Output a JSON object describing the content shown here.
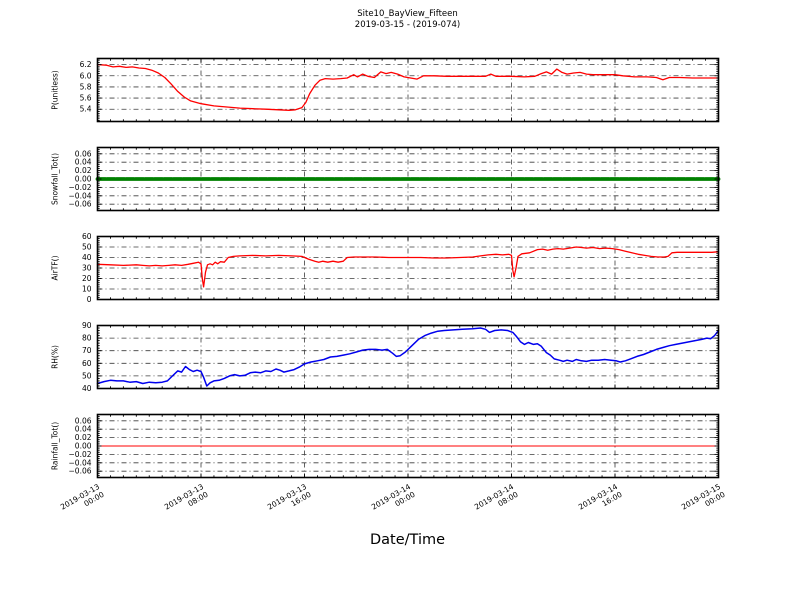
{
  "figure": {
    "title_line1": "Site10_BayView_Fifteen",
    "title_line2": "2019-03-15 - (2019-074)",
    "background": "#ffffff",
    "grid_color": "#3c3c3c",
    "spine_color": "#000000"
  },
  "x_axis": {
    "label": "Date/Time",
    "range_hours": [
      0,
      48
    ],
    "tick_hours": [
      0,
      8,
      16,
      24,
      32,
      40,
      48
    ],
    "minor_step_hours": 1,
    "grid_style": "dash-dot",
    "tick_labels": [
      {
        "date": "2019-03-13",
        "time": "00:00"
      },
      {
        "date": "2019-03-13",
        "time": "08:00"
      },
      {
        "date": "2019-03-13",
        "time": "16:00"
      },
      {
        "date": "2019-03-14",
        "time": "00:00"
      },
      {
        "date": "2019-03-14",
        "time": "08:00"
      },
      {
        "date": "2019-03-14",
        "time": "16:00"
      },
      {
        "date": "2019-03-15",
        "time": "00:00"
      }
    ]
  },
  "chart_data": [
    {
      "name": "p-unitless",
      "type": "line",
      "ylabel": "P(unitless)",
      "color": "#ff0000",
      "line_width": 1.3,
      "ylim": [
        5.18,
        6.31
      ],
      "minor_step": 0.04,
      "yticks": [
        {
          "v": 5.4,
          "label": "5.4"
        },
        {
          "v": 5.6,
          "label": "5.6"
        },
        {
          "v": 5.8,
          "label": "5.8"
        },
        {
          "v": 6.0,
          "label": "6.0"
        },
        {
          "v": 6.2,
          "label": "6.2"
        }
      ],
      "points": [
        [
          0,
          6.2
        ],
        [
          0.7,
          6.19
        ],
        [
          1.2,
          6.16
        ],
        [
          1.7,
          6.17
        ],
        [
          2.2,
          6.15
        ],
        [
          2.7,
          6.16
        ],
        [
          3.2,
          6.14
        ],
        [
          3.7,
          6.13
        ],
        [
          4.2,
          6.1
        ],
        [
          4.7,
          6.05
        ],
        [
          5.2,
          5.97
        ],
        [
          5.7,
          5.85
        ],
        [
          6.2,
          5.72
        ],
        [
          6.7,
          5.62
        ],
        [
          7.2,
          5.55
        ],
        [
          8,
          5.5
        ],
        [
          9,
          5.46
        ],
        [
          10,
          5.44
        ],
        [
          11,
          5.42
        ],
        [
          12,
          5.41
        ],
        [
          13,
          5.4
        ],
        [
          14,
          5.39
        ],
        [
          14.8,
          5.38
        ],
        [
          15.3,
          5.39
        ],
        [
          15.8,
          5.43
        ],
        [
          16.1,
          5.52
        ],
        [
          16.4,
          5.68
        ],
        [
          16.8,
          5.83
        ],
        [
          17.2,
          5.92
        ],
        [
          17.6,
          5.95
        ],
        [
          18.2,
          5.94
        ],
        [
          18.8,
          5.95
        ],
        [
          19.3,
          5.96
        ],
        [
          19.8,
          6.02
        ],
        [
          20.1,
          5.98
        ],
        [
          20.5,
          6.03
        ],
        [
          20.9,
          5.99
        ],
        [
          21.4,
          5.97
        ],
        [
          21.9,
          6.07
        ],
        [
          22.3,
          6.04
        ],
        [
          22.7,
          6.06
        ],
        [
          23.2,
          6.03
        ],
        [
          23.7,
          5.98
        ],
        [
          24.2,
          5.96
        ],
        [
          24.7,
          5.94
        ],
        [
          25.2,
          6
        ],
        [
          26,
          6
        ],
        [
          27,
          5.99
        ],
        [
          28,
          5.99
        ],
        [
          29,
          5.99
        ],
        [
          30,
          5.99
        ],
        [
          30.4,
          6.03
        ],
        [
          30.8,
          5.99
        ],
        [
          32,
          5.99
        ],
        [
          33,
          5.98
        ],
        [
          33.8,
          5.99
        ],
        [
          34.3,
          6.04
        ],
        [
          34.7,
          6.07
        ],
        [
          35.1,
          6.03
        ],
        [
          35.5,
          6.12
        ],
        [
          35.9,
          6.06
        ],
        [
          36.3,
          6.03
        ],
        [
          36.8,
          6.05
        ],
        [
          37.3,
          6.06
        ],
        [
          37.8,
          6.03
        ],
        [
          38.3,
          6.02
        ],
        [
          39,
          6.02
        ],
        [
          40,
          6.02
        ],
        [
          40.6,
          6
        ],
        [
          41.5,
          5.98
        ],
        [
          42.5,
          5.98
        ],
        [
          43.2,
          5.97
        ],
        [
          43.7,
          5.93
        ],
        [
          44.2,
          5.97
        ],
        [
          45,
          5.97
        ],
        [
          46,
          5.96
        ],
        [
          47,
          5.96
        ],
        [
          48,
          5.96
        ]
      ]
    },
    {
      "name": "snowfall-tot",
      "type": "line",
      "ylabel": "Snowfall_Tot()",
      "color": "#008000",
      "line_width": 3.8,
      "dash": "8 1.5",
      "ylim": [
        -0.075,
        0.075
      ],
      "minor_step": 0.005,
      "yticks": [
        {
          "v": 0.06,
          "label": "0.06"
        },
        {
          "v": 0.04,
          "label": "0.04"
        },
        {
          "v": 0.02,
          "label": "0.02"
        },
        {
          "v": 0.0,
          "label": "0.00"
        },
        {
          "v": -0.02,
          "label": "−0.02"
        },
        {
          "v": -0.04,
          "label": "−0.04"
        },
        {
          "v": -0.06,
          "label": "−0.06"
        }
      ],
      "points": [
        [
          0,
          0
        ],
        [
          48,
          0
        ]
      ]
    },
    {
      "name": "airtf",
      "type": "line",
      "ylabel": "AirTF()",
      "color": "#ff0000",
      "line_width": 1.3,
      "ylim": [
        0,
        60
      ],
      "minor_step": 2,
      "yticks": [
        {
          "v": 0,
          "label": "0"
        },
        {
          "v": 10,
          "label": "10"
        },
        {
          "v": 20,
          "label": "20"
        },
        {
          "v": 30,
          "label": "30"
        },
        {
          "v": 40,
          "label": "40"
        },
        {
          "v": 50,
          "label": "50"
        },
        {
          "v": 60,
          "label": "60"
        }
      ],
      "points": [
        [
          0,
          33.5
        ],
        [
          1,
          33
        ],
        [
          2,
          32.5
        ],
        [
          3,
          33
        ],
        [
          3.5,
          32.5
        ],
        [
          4,
          32
        ],
        [
          4.5,
          32.5
        ],
        [
          5,
          32
        ],
        [
          5.5,
          32.5
        ],
        [
          6,
          33
        ],
        [
          6.5,
          32.5
        ],
        [
          7,
          33.5
        ],
        [
          7.4,
          34.5
        ],
        [
          7.8,
          35.5
        ],
        [
          8,
          34
        ],
        [
          8.1,
          20
        ],
        [
          8.2,
          12
        ],
        [
          8.35,
          26
        ],
        [
          8.5,
          33
        ],
        [
          8.7,
          34
        ],
        [
          8.9,
          33
        ],
        [
          9.1,
          35.5
        ],
        [
          9.3,
          34
        ],
        [
          9.5,
          36
        ],
        [
          9.8,
          35.5
        ],
        [
          10.1,
          40
        ],
        [
          10.5,
          41
        ],
        [
          11,
          41.5
        ],
        [
          12,
          42
        ],
        [
          13,
          41.5
        ],
        [
          14,
          42
        ],
        [
          15,
          41.5
        ],
        [
          15.8,
          41
        ],
        [
          16.3,
          38.5
        ],
        [
          16.8,
          36.5
        ],
        [
          17.1,
          35.5
        ],
        [
          17.4,
          36.5
        ],
        [
          17.8,
          35.5
        ],
        [
          18.2,
          36.5
        ],
        [
          18.6,
          35.5
        ],
        [
          19,
          36.5
        ],
        [
          19.3,
          40
        ],
        [
          19.8,
          40.5
        ],
        [
          20.5,
          40.5
        ],
        [
          21.5,
          40.5
        ],
        [
          22.5,
          40
        ],
        [
          24,
          40
        ],
        [
          25,
          40
        ],
        [
          26,
          39.5
        ],
        [
          27,
          39.5
        ],
        [
          28,
          40
        ],
        [
          29,
          40.5
        ],
        [
          29.6,
          41.5
        ],
        [
          30.2,
          42.5
        ],
        [
          30.8,
          43
        ],
        [
          31.3,
          42.5
        ],
        [
          31.8,
          43
        ],
        [
          32,
          42
        ],
        [
          32.1,
          28
        ],
        [
          32.2,
          21.5
        ],
        [
          32.35,
          30
        ],
        [
          32.5,
          41
        ],
        [
          32.8,
          43.5
        ],
        [
          33.4,
          44.5
        ],
        [
          34,
          47.5
        ],
        [
          34.4,
          48
        ],
        [
          34.8,
          47
        ],
        [
          35.2,
          48
        ],
        [
          35.6,
          48.5
        ],
        [
          36,
          48
        ],
        [
          36.5,
          49
        ],
        [
          37,
          50
        ],
        [
          37.4,
          49.5
        ],
        [
          37.8,
          49
        ],
        [
          38.3,
          49.5
        ],
        [
          38.8,
          48.5
        ],
        [
          39.3,
          49
        ],
        [
          39.8,
          48.5
        ],
        [
          40.3,
          47.5
        ],
        [
          40.8,
          46
        ],
        [
          41.3,
          44.5
        ],
        [
          41.8,
          43
        ],
        [
          42.3,
          42
        ],
        [
          42.8,
          41
        ],
        [
          43.3,
          40.5
        ],
        [
          43.8,
          40.5
        ],
        [
          44.1,
          41
        ],
        [
          44.4,
          44.5
        ],
        [
          44.8,
          45
        ],
        [
          45.5,
          45
        ],
        [
          46.5,
          45
        ],
        [
          47.5,
          45
        ],
        [
          48,
          45.5
        ]
      ]
    },
    {
      "name": "rh",
      "type": "line",
      "ylabel": "RH(%)",
      "color": "#0000ee",
      "line_width": 1.5,
      "ylim": [
        40,
        90
      ],
      "minor_step": 2,
      "yticks": [
        {
          "v": 40,
          "label": "40"
        },
        {
          "v": 50,
          "label": "50"
        },
        {
          "v": 60,
          "label": "60"
        },
        {
          "v": 70,
          "label": "70"
        },
        {
          "v": 80,
          "label": "80"
        },
        {
          "v": 90,
          "label": "90"
        }
      ],
      "points": [
        [
          0,
          44
        ],
        [
          0.5,
          45.5
        ],
        [
          1,
          46.5
        ],
        [
          1.5,
          46
        ],
        [
          2,
          46
        ],
        [
          2.5,
          45
        ],
        [
          3,
          45.5
        ],
        [
          3.5,
          44
        ],
        [
          4,
          45
        ],
        [
          4.5,
          44.5
        ],
        [
          5,
          45
        ],
        [
          5.4,
          46
        ],
        [
          5.8,
          50
        ],
        [
          6.2,
          54
        ],
        [
          6.5,
          53
        ],
        [
          6.8,
          57.5
        ],
        [
          7.1,
          55
        ],
        [
          7.4,
          53.5
        ],
        [
          7.7,
          54.5
        ],
        [
          8,
          53.5
        ],
        [
          8.2,
          49
        ],
        [
          8.45,
          42
        ],
        [
          8.7,
          44.5
        ],
        [
          9,
          46
        ],
        [
          9.4,
          46.5
        ],
        [
          9.8,
          48
        ],
        [
          10.2,
          50
        ],
        [
          10.6,
          51
        ],
        [
          11,
          50
        ],
        [
          11.4,
          50.5
        ],
        [
          11.8,
          52.5
        ],
        [
          12.2,
          53
        ],
        [
          12.6,
          52.5
        ],
        [
          13,
          54
        ],
        [
          13.4,
          53.5
        ],
        [
          13.8,
          55.5
        ],
        [
          14.1,
          54.5
        ],
        [
          14.4,
          53
        ],
        [
          14.8,
          54
        ],
        [
          15.2,
          55
        ],
        [
          15.6,
          57
        ],
        [
          16,
          59.5
        ],
        [
          16.5,
          61
        ],
        [
          17,
          62
        ],
        [
          17.5,
          63
        ],
        [
          18,
          65
        ],
        [
          18.5,
          65.5
        ],
        [
          19,
          66.5
        ],
        [
          19.5,
          67.5
        ],
        [
          20,
          69
        ],
        [
          20.5,
          70.5
        ],
        [
          21,
          71
        ],
        [
          21.5,
          71
        ],
        [
          22,
          70.5
        ],
        [
          22.4,
          71
        ],
        [
          22.8,
          68
        ],
        [
          23.1,
          65.5
        ],
        [
          23.4,
          66
        ],
        [
          23.8,
          69
        ],
        [
          24.3,
          74
        ],
        [
          24.8,
          79
        ],
        [
          25.3,
          82
        ],
        [
          25.8,
          84
        ],
        [
          26.3,
          85.5
        ],
        [
          26.8,
          86
        ],
        [
          27.5,
          86.5
        ],
        [
          28.2,
          87
        ],
        [
          29,
          87.5
        ],
        [
          29.6,
          88
        ],
        [
          30,
          87
        ],
        [
          30.3,
          84.5
        ],
        [
          30.7,
          86
        ],
        [
          31.2,
          86.5
        ],
        [
          31.7,
          86
        ],
        [
          32.1,
          84.5
        ],
        [
          32.4,
          81
        ],
        [
          32.7,
          77
        ],
        [
          33,
          75
        ],
        [
          33.3,
          76.5
        ],
        [
          33.7,
          75
        ],
        [
          34,
          75.5
        ],
        [
          34.3,
          73.5
        ],
        [
          34.7,
          68.5
        ],
        [
          35,
          66.5
        ],
        [
          35.3,
          63.5
        ],
        [
          35.7,
          62.5
        ],
        [
          36,
          61.5
        ],
        [
          36.3,
          62.5
        ],
        [
          36.7,
          61.5
        ],
        [
          37,
          63
        ],
        [
          37.4,
          62
        ],
        [
          37.8,
          61.5
        ],
        [
          38.2,
          62.5
        ],
        [
          38.7,
          62.5
        ],
        [
          39.2,
          63
        ],
        [
          39.7,
          62.5
        ],
        [
          40.1,
          62
        ],
        [
          40.4,
          61
        ],
        [
          40.8,
          62
        ],
        [
          41.2,
          63.5
        ],
        [
          41.7,
          65.5
        ],
        [
          42.2,
          67
        ],
        [
          42.7,
          69
        ],
        [
          43.2,
          71
        ],
        [
          43.7,
          72.5
        ],
        [
          44.2,
          74
        ],
        [
          44.7,
          75
        ],
        [
          45.2,
          76
        ],
        [
          45.7,
          77
        ],
        [
          46.2,
          78
        ],
        [
          46.7,
          79
        ],
        [
          47.1,
          80
        ],
        [
          47.4,
          79.5
        ],
        [
          47.7,
          82
        ],
        [
          48,
          86
        ]
      ]
    },
    {
      "name": "rainfall-tot",
      "type": "line",
      "ylabel": "Rainfall_Tot()",
      "color": "#ff0000",
      "line_width": 1.1,
      "ylim": [
        -0.075,
        0.075
      ],
      "minor_step": 0.005,
      "yticks": [
        {
          "v": 0.06,
          "label": "0.06"
        },
        {
          "v": 0.04,
          "label": "0.04"
        },
        {
          "v": 0.02,
          "label": "0.02"
        },
        {
          "v": 0.0,
          "label": "0.00"
        },
        {
          "v": -0.02,
          "label": "−0.02"
        },
        {
          "v": -0.04,
          "label": "−0.04"
        },
        {
          "v": -0.06,
          "label": "−0.06"
        }
      ],
      "points": [
        [
          0,
          0
        ],
        [
          48,
          0
        ]
      ]
    }
  ]
}
